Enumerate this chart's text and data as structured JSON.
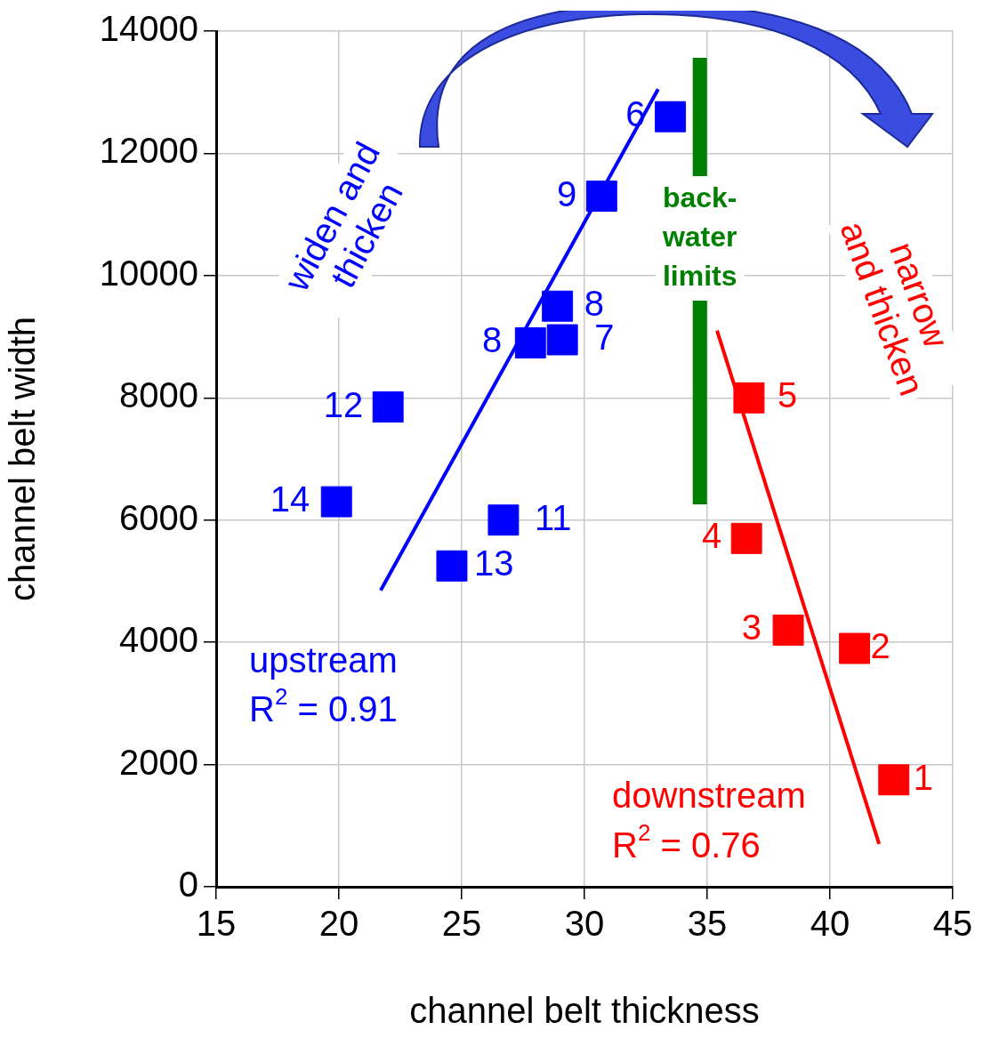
{
  "chart_data": {
    "type": "scatter",
    "xlabel": "channel belt thickness",
    "ylabel": "channel belt width",
    "xlim": [
      15,
      45
    ],
    "xticks": [
      15,
      20,
      25,
      30,
      35,
      40,
      45
    ],
    "ylim": [
      0,
      14000
    ],
    "yticks": [
      0,
      2000,
      4000,
      6000,
      8000,
      10000,
      12000,
      14000
    ],
    "grid": true,
    "legend": false,
    "marker": "square",
    "series": [
      {
        "color": "#0000ff",
        "x": [
          33.5,
          30.7,
          28.9,
          29.1,
          27.8,
          22.0,
          19.9,
          26.7,
          24.6
        ],
        "values": [
          12600,
          11300,
          9500,
          8950,
          8900,
          7850,
          6300,
          6000,
          5250
        ]
      },
      {
        "type": "line",
        "color": "#0000ff",
        "marker": "none",
        "x": [
          21.7,
          33.0
        ],
        "values": [
          4850,
          13050
        ]
      },
      {
        "color": "#ff0000",
        "x": [
          36.7,
          36.6,
          38.3,
          41.0,
          42.6
        ],
        "values": [
          8000,
          5700,
          4200,
          3900,
          1750
        ]
      },
      {
        "type": "line",
        "color": "#ff0000",
        "marker": "none",
        "x": [
          35.4,
          42.0
        ],
        "values": [
          9100,
          700
        ]
      }
    ],
    "ref_lines": [
      {
        "axis": "x",
        "value": 34.7,
        "label": "back-\nwater\nlimits",
        "color": "#008000"
      }
    ],
    "annotations": [
      {
        "text": "6",
        "x": 33.5,
        "y": 12600
      },
      {
        "text": "9",
        "x": 30.7,
        "y": 11300
      },
      {
        "text": "8",
        "x": 28.9,
        "y": 9500
      },
      {
        "text": "7",
        "x": 29.1,
        "y": 8950
      },
      {
        "text": "8",
        "x": 27.8,
        "y": 8900
      },
      {
        "text": "12",
        "x": 22.0,
        "y": 7850
      },
      {
        "text": "14",
        "x": 19.9,
        "y": 6300
      },
      {
        "text": "11",
        "x": 26.7,
        "y": 6000
      },
      {
        "text": "13",
        "x": 24.6,
        "y": 5250
      },
      {
        "text": "5",
        "x": 36.7,
        "y": 8000
      },
      {
        "text": "4",
        "x": 36.6,
        "y": 5700
      },
      {
        "text": "3",
        "x": 38.3,
        "y": 4200
      },
      {
        "text": "2",
        "x": 41.0,
        "y": 3900
      },
      {
        "text": "1",
        "x": 42.6,
        "y": 1750
      },
      "widen and\nthicken",
      "narrow\nand thicken",
      "upstream",
      "R$^{2}$ = 0.91",
      "downstream",
      "R$^{2}$ = 0.76"
    ]
  }
}
